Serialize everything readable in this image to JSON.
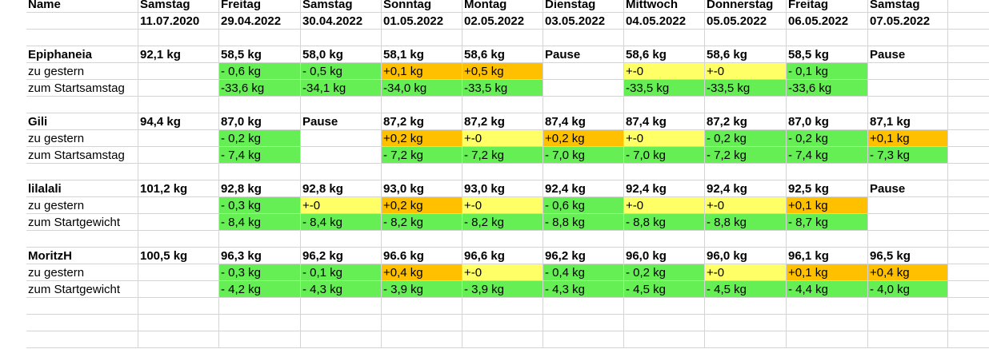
{
  "header": {
    "name_label": "Name",
    "columns": [
      {
        "weekday": "Samstag",
        "date": "11.07.2020"
      },
      {
        "weekday": "Freitag",
        "date": "29.04.2022"
      },
      {
        "weekday": "Samstag",
        "date": "30.04.2022"
      },
      {
        "weekday": "Sonntag",
        "date": "01.05.2022"
      },
      {
        "weekday": "Montag",
        "date": "02.05.2022"
      },
      {
        "weekday": "Dienstag",
        "date": "03.05.2022"
      },
      {
        "weekday": "Mittwoch",
        "date": "04.05.2022"
      },
      {
        "weekday": "Donnerstag",
        "date": "05.05.2022"
      },
      {
        "weekday": "Freitag",
        "date": "06.05.2022"
      },
      {
        "weekday": "Samstag",
        "date": "07.05.2022"
      }
    ]
  },
  "colors": {
    "green": "#66ee55",
    "orange": "#ffc000",
    "yellow": "#ffff66"
  },
  "people": [
    {
      "name": "Epiphaneia",
      "weights": [
        "92,1 kg",
        "58,5 kg",
        "58,0 kg",
        "58,1 kg",
        "58,6 kg",
        "Pause",
        "58,6 kg",
        "58,6 kg",
        "58,5 kg",
        "Pause"
      ],
      "rows": [
        {
          "label": "zu gestern",
          "values": [
            "",
            "- 0,6 kg",
            "- 0,5 kg",
            "+0,1 kg",
            "+0,5 kg",
            "",
            "+-0",
            "+-0",
            "- 0,1 kg",
            ""
          ],
          "colors": [
            "",
            "green",
            "green",
            "orange",
            "orange",
            "",
            "yellow",
            "yellow",
            "green",
            ""
          ]
        },
        {
          "label": "zum Startsamstag",
          "values": [
            "",
            "-33,6 kg",
            "-34,1 kg",
            "-34,0 kg",
            "-33,5 kg",
            "",
            "-33,5 kg",
            "-33,5 kg",
            "-33,6 kg",
            ""
          ],
          "colors": [
            "",
            "green",
            "green",
            "green",
            "green",
            "",
            "green",
            "green",
            "green",
            ""
          ]
        }
      ]
    },
    {
      "name": "Gili",
      "weights": [
        "94,4 kg",
        "87,0 kg",
        "Pause",
        "87,2 kg",
        "87,2 kg",
        "87,4 kg",
        "87,4 kg",
        "87,2 kg",
        "87,0 kg",
        "87,1 kg"
      ],
      "rows": [
        {
          "label": "zu gestern",
          "values": [
            "",
            "- 0,2 kg",
            "",
            "+0,2 kg",
            "+-0",
            "+0,2 kg",
            "+-0",
            "- 0,2 kg",
            "- 0,2 kg",
            "+0,1 kg"
          ],
          "colors": [
            "",
            "green",
            "",
            "orange",
            "yellow",
            "orange",
            "yellow",
            "green",
            "green",
            "orange"
          ]
        },
        {
          "label": "zum Startsamstag",
          "values": [
            "",
            "- 7,4 kg",
            "",
            "- 7,2 kg",
            "- 7,2 kg",
            "- 7,0 kg",
            "- 7,0 kg",
            "- 7,2 kg",
            "- 7,4 kg",
            "- 7,3 kg"
          ],
          "colors": [
            "",
            "green",
            "",
            "green",
            "green",
            "green",
            "green",
            "green",
            "green",
            "green"
          ]
        }
      ]
    },
    {
      "name": "lilalali",
      "weights": [
        "101,2 kg",
        "92,8 kg",
        "92,8 kg",
        "93,0 kg",
        "93,0 kg",
        "92,4 kg",
        "92,4 kg",
        "92,4 kg",
        "92,5 kg",
        "Pause"
      ],
      "rows": [
        {
          "label": "zu gestern",
          "values": [
            "",
            "- 0,3 kg",
            "+-0",
            "+0,2 kg",
            "+-0",
            "- 0,6 kg",
            "+-0",
            "+-0",
            "+0,1 kg",
            ""
          ],
          "colors": [
            "",
            "green",
            "yellow",
            "orange",
            "yellow",
            "green",
            "yellow",
            "yellow",
            "orange",
            ""
          ]
        },
        {
          "label": "zum Startgewicht",
          "values": [
            "",
            "- 8,4 kg",
            "- 8,4 kg",
            "- 8,2 kg",
            "- 8,2 kg",
            "- 8,8 kg",
            "- 8,8 kg",
            "- 8,8 kg",
            "- 8,7 kg",
            ""
          ],
          "colors": [
            "",
            "green",
            "green",
            "green",
            "green",
            "green",
            "green",
            "green",
            "green",
            ""
          ]
        }
      ]
    },
    {
      "name": "MoritzH",
      "weights": [
        "100,5 kg",
        "96,3 kg",
        "96,2 kg",
        "96.6 kg",
        "96,6 kg",
        "96,2 kg",
        "96,0 kg",
        "96,0 kg",
        "96,1 kg",
        "96,5 kg"
      ],
      "rows": [
        {
          "label": "zu gestern",
          "values": [
            "",
            "- 0,3 kg",
            "- 0,1 kg",
            "+0,4 kg",
            "+-0",
            "- 0,4 kg",
            "- 0,2 kg",
            "+-0",
            "+0,1 kg",
            "+0,4 kg"
          ],
          "colors": [
            "",
            "green",
            "green",
            "orange",
            "yellow",
            "green",
            "green",
            "yellow",
            "orange",
            "orange"
          ]
        },
        {
          "label": "zum Startgewicht",
          "values": [
            "",
            "- 4,2 kg",
            "- 4,3 kg",
            "- 3,9 kg",
            "- 3,9 kg",
            "- 4,3 kg",
            "- 4,5 kg",
            "- 4,5 kg",
            "- 4,4 kg",
            "- 4,0 kg"
          ],
          "colors": [
            "",
            "green",
            "green",
            "green",
            "green",
            "green",
            "green",
            "green",
            "green",
            "green"
          ]
        }
      ]
    }
  ]
}
